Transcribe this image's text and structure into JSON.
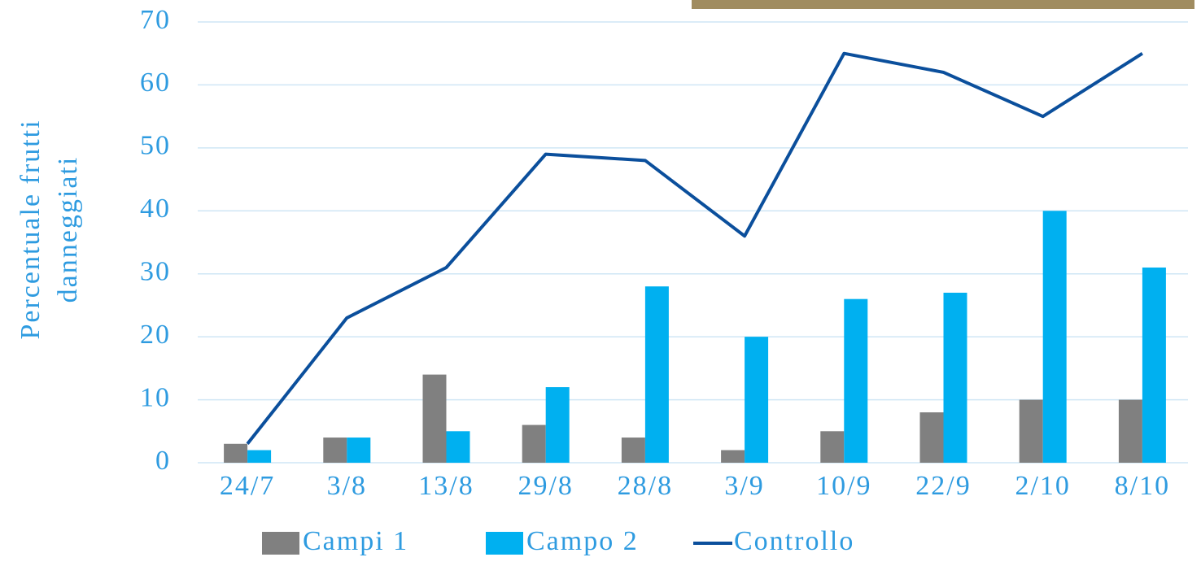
{
  "chart_data": {
    "type": "bar-line",
    "ylabel": [
      "Percentuale frutti",
      "danneggiati"
    ],
    "categories": [
      "24/7",
      "3/8",
      "13/8",
      "29/8",
      "28/8",
      "3/9",
      "10/9",
      "22/9",
      "2/10",
      "8/10"
    ],
    "series": [
      {
        "name": "Campi 1",
        "type": "bar",
        "color": "#808080",
        "values": [
          3,
          4,
          14,
          6,
          4,
          2,
          5,
          8,
          10,
          10
        ]
      },
      {
        "name": "Campo 2",
        "type": "bar",
        "color": "#00b0f0",
        "values": [
          2,
          4,
          5,
          12,
          28,
          20,
          26,
          27,
          40,
          31
        ]
      },
      {
        "name": "Controllo",
        "type": "line",
        "color": "#0b4f9c",
        "values": [
          3,
          23,
          31,
          49,
          48,
          36,
          65,
          62,
          55,
          65
        ]
      }
    ],
    "ylim": [
      0,
      70
    ],
    "yticks": [
      0,
      10,
      20,
      30,
      40,
      50,
      60,
      70
    ],
    "grid": true,
    "legend": "bottom"
  }
}
